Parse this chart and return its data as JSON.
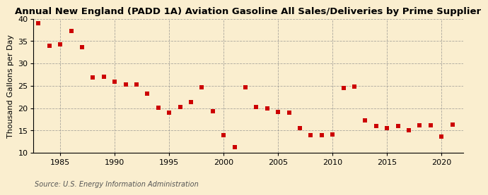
{
  "title": "Annual New England (PADD 1A) Aviation Gasoline All Sales/Deliveries by Prime Supplier",
  "ylabel": "Thousand Gallons per Day",
  "source": "Source: U.S. Energy Information Administration",
  "background_color": "#faeecf",
  "marker_color": "#cc0000",
  "years": [
    1983,
    1984,
    1985,
    1986,
    1987,
    1988,
    1989,
    1990,
    1991,
    1992,
    1993,
    1994,
    1995,
    1996,
    1997,
    1998,
    1999,
    2000,
    2001,
    2002,
    2003,
    2004,
    2005,
    2006,
    2007,
    2008,
    2009,
    2010,
    2011,
    2012,
    2013,
    2014,
    2015,
    2016,
    2017,
    2018,
    2019,
    2020,
    2021
  ],
  "values": [
    39.0,
    34.0,
    34.3,
    37.2,
    33.6,
    26.9,
    27.0,
    25.9,
    25.3,
    25.3,
    23.2,
    20.1,
    19.0,
    20.2,
    21.3,
    24.6,
    19.3,
    13.9,
    11.3,
    24.6,
    20.2,
    19.9,
    19.2,
    19.0,
    15.6,
    14.0,
    14.0,
    14.1,
    24.5,
    24.8,
    17.2,
    16.0,
    15.5,
    16.0,
    15.1,
    16.1,
    16.1,
    13.6,
    16.4
  ],
  "ylim": [
    10,
    40
  ],
  "xlim": [
    1982.5,
    2022
  ],
  "yticks": [
    10,
    15,
    20,
    25,
    30,
    35,
    40
  ],
  "xticks": [
    1985,
    1990,
    1995,
    2000,
    2005,
    2010,
    2015,
    2020
  ],
  "title_fontsize": 9.5,
  "tick_fontsize": 8,
  "ylabel_fontsize": 8,
  "source_fontsize": 7
}
